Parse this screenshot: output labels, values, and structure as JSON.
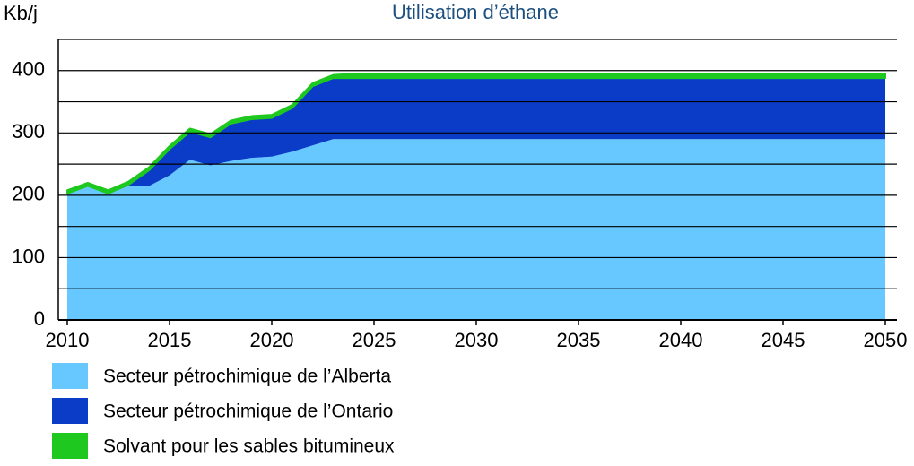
{
  "chart_data": {
    "type": "stacked_area",
    "title": "Utilisation d’éthane",
    "y_label": "Kb/j",
    "x": [
      2010,
      2011,
      2012,
      2013,
      2014,
      2015,
      2016,
      2017,
      2018,
      2019,
      2020,
      2021,
      2022,
      2023,
      2024,
      2025,
      2026,
      2027,
      2028,
      2029,
      2030,
      2031,
      2032,
      2033,
      2034,
      2035,
      2036,
      2037,
      2038,
      2039,
      2040,
      2041,
      2042,
      2043,
      2044,
      2045,
      2046,
      2047,
      2048,
      2049,
      2050
    ],
    "series": [
      {
        "name": "Secteur pétrochimique de l’Alberta",
        "color": "#66c8ff",
        "values": [
          203,
          215,
          203,
          215,
          215,
          232,
          257,
          248,
          255,
          260,
          262,
          270,
          280,
          290,
          290,
          290,
          290,
          290,
          290,
          290,
          290,
          290,
          290,
          290,
          290,
          290,
          290,
          290,
          290,
          290,
          290,
          290,
          290,
          290,
          290,
          290,
          290,
          290,
          290,
          290,
          290
        ]
      },
      {
        "name": "Secteur pétrochimique de l’Ontario",
        "color": "#0a3cc8",
        "values": [
          0,
          0,
          0,
          2,
          25,
          42,
          45,
          45,
          60,
          62,
          62,
          70,
          95,
          98,
          98,
          98,
          98,
          98,
          98,
          98,
          98,
          98,
          98,
          98,
          98,
          98,
          98,
          98,
          98,
          98,
          98,
          98,
          98,
          98,
          98,
          98,
          98,
          98,
          98,
          98,
          98
        ]
      },
      {
        "name": "Solvant pour les sables bitumineux",
        "color": "#1ec81e",
        "values": [
          5,
          5,
          5,
          5,
          5,
          5,
          5,
          5,
          5,
          5,
          5,
          5,
          5,
          5,
          7,
          7,
          7,
          7,
          7,
          7,
          7,
          7,
          7,
          7,
          7,
          7,
          7,
          7,
          7,
          7,
          7,
          7,
          7,
          7,
          7,
          7,
          7,
          7,
          7,
          7,
          7
        ]
      }
    ],
    "xlim": [
      2010,
      2050
    ],
    "xticks": [
      2010,
      2015,
      2020,
      2025,
      2030,
      2035,
      2040,
      2045,
      2050
    ],
    "ylim": [
      0,
      450
    ],
    "yticks": [
      0,
      100,
      200,
      300,
      400
    ],
    "grid_lines": [
      50,
      150,
      250,
      350,
      450
    ],
    "grid": true
  }
}
